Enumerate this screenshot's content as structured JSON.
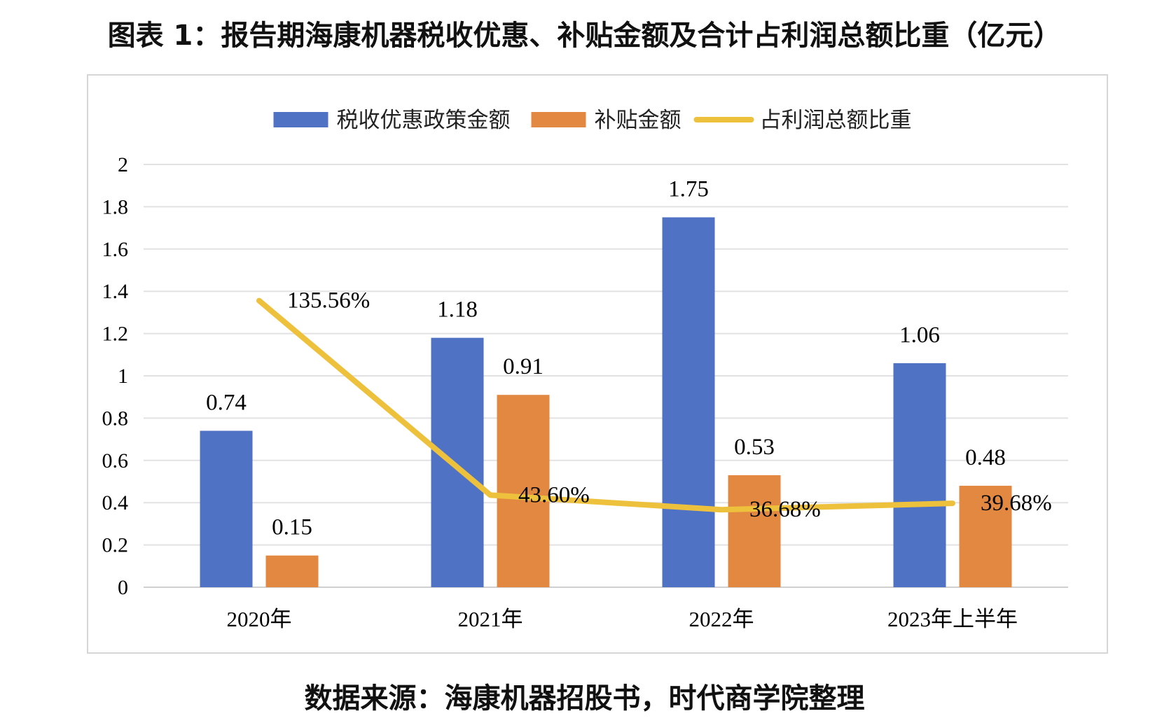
{
  "title": "图表 1：报告期海康机器税收优惠、补贴金额及合计占利润总额比重（亿元）",
  "source": "数据来源：海康机器招股书，时代商学院整理",
  "chart_data": {
    "type": "bar",
    "categories": [
      "2020年",
      "2021年",
      "2022年",
      "2023年上半年"
    ],
    "series": [
      {
        "name": "税收优惠政策金额",
        "type": "bar",
        "color": "#4F72C4",
        "values": [
          0.74,
          1.18,
          1.75,
          1.06
        ],
        "labels": [
          "0.74",
          "1.18",
          "1.75",
          "1.06"
        ]
      },
      {
        "name": "补贴金额",
        "type": "bar",
        "color": "#E38841",
        "values": [
          0.15,
          0.91,
          0.53,
          0.48
        ],
        "labels": [
          "0.15",
          "0.91",
          "0.53",
          "0.48"
        ]
      },
      {
        "name": "占利润总额比重",
        "type": "line",
        "color": "#EEC13C",
        "values": [
          135.56,
          43.6,
          36.68,
          39.68
        ],
        "labels": [
          "135.56%",
          "43.60%",
          "36.68%",
          "39.68%"
        ]
      }
    ],
    "yticks": [
      "0",
      "0.2",
      "0.4",
      "0.6",
      "0.8",
      "1",
      "1.2",
      "1.4",
      "1.6",
      "1.8",
      "2"
    ],
    "ylim": [
      0,
      2
    ],
    "line_axis_range": [
      0,
      200
    ],
    "legend": "top",
    "grid": true
  }
}
